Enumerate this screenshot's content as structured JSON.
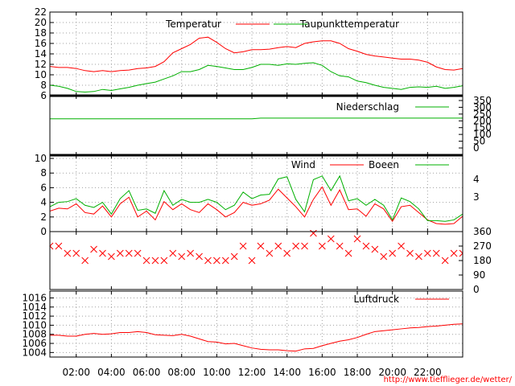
{
  "credit": "http://www.tiefflieger.de/wetter/",
  "colors": {
    "red": "#ff0000",
    "green": "#00b000",
    "grid": "#a0a0a0"
  },
  "x_ticks": [
    "02:00",
    "04:00",
    "06:00",
    "08:00",
    "10:00",
    "12:00",
    "14:00",
    "16:00",
    "18:00",
    "20:00",
    "22:00"
  ],
  "chart_data": [
    {
      "type": "line",
      "ylim": [
        6,
        22
      ],
      "yticks": [
        "22",
        "20",
        "18",
        "16",
        "14",
        "12",
        "10",
        "8",
        "6"
      ],
      "grid": true,
      "legend_position": "top-right",
      "series": [
        {
          "name": "Temperatur",
          "color": "#ff0000",
          "x": [
            0,
            0.5,
            1,
            1.5,
            2,
            2.5,
            3,
            3.5,
            4,
            4.5,
            5,
            5.5,
            6,
            6.5,
            7,
            7.5,
            8,
            8.5,
            9,
            9.5,
            10,
            10.5,
            11,
            11.5,
            12,
            12.5,
            13,
            13.5,
            14,
            14.5,
            15,
            15.5,
            16,
            16.5,
            17,
            17.5,
            18,
            18.5,
            19,
            19.5,
            20,
            20.5,
            21,
            21.5,
            22,
            22.5,
            23,
            23.5,
            24
          ],
          "values": [
            11.8,
            11.6,
            11.4,
            11.4,
            11.2,
            10.8,
            10.6,
            10.8,
            10.6,
            10.8,
            10.9,
            11.2,
            11.3,
            11.6,
            12.5,
            14.2,
            15.0,
            15.8,
            17.0,
            17.2,
            16.2,
            15.0,
            14.2,
            14.4,
            14.8,
            14.8,
            14.9,
            15.2,
            15.4,
            15.2,
            16.0,
            16.3,
            16.5,
            16.5,
            16.0,
            15.0,
            14.5,
            13.9,
            13.6,
            13.4,
            13.2,
            13.0,
            13.0,
            12.8,
            12.4,
            11.5,
            11.0,
            10.9,
            11.2
          ]
        },
        {
          "name": "Taupunkttemperatur",
          "color": "#00b000",
          "x": [
            0,
            0.5,
            1,
            1.5,
            2,
            2.5,
            3,
            3.5,
            4,
            4.5,
            5,
            5.5,
            6,
            6.5,
            7,
            7.5,
            8,
            8.5,
            9,
            9.5,
            10,
            10.5,
            11,
            11.5,
            12,
            12.5,
            13,
            13.5,
            14,
            14.5,
            15,
            15.5,
            16,
            16.5,
            17,
            17.5,
            18,
            18.5,
            19,
            19.5,
            20,
            20.5,
            21,
            21.5,
            22,
            22.5,
            23,
            23.5,
            24
          ],
          "values": [
            8.3,
            8.0,
            7.8,
            7.4,
            6.8,
            6.7,
            6.8,
            7.2,
            7.0,
            7.3,
            7.6,
            8.0,
            8.3,
            8.6,
            9.2,
            9.8,
            10.6,
            10.6,
            11.0,
            11.8,
            11.6,
            11.3,
            11.0,
            11.0,
            11.4,
            12.0,
            12.0,
            11.8,
            12.1,
            12.0,
            12.2,
            12.3,
            11.8,
            10.6,
            9.8,
            9.6,
            8.8,
            8.5,
            8.0,
            7.6,
            7.4,
            7.2,
            7.6,
            7.7,
            7.6,
            7.8,
            7.4,
            7.6,
            7.9
          ]
        }
      ]
    },
    {
      "type": "line",
      "ylim": [
        0,
        350
      ],
      "yticks": [
        "350",
        "300",
        "250",
        "200",
        "150",
        "100",
        "50",
        "0"
      ],
      "legend_position": "top-right",
      "series": [
        {
          "name": "Niederschlag",
          "color": "#00b000",
          "x": [
            0,
            12,
            12.5,
            24
          ],
          "values": [
            215,
            215,
            220,
            220
          ]
        }
      ]
    },
    {
      "type": "line",
      "ylim": [
        0,
        10
      ],
      "yticks": [
        "10",
        "8",
        "6",
        "4",
        "2",
        "0"
      ],
      "right_ticks": [
        "4",
        "3"
      ],
      "grid": true,
      "legend_position": "top-right",
      "series": [
        {
          "name": "Wind",
          "color": "#ff0000",
          "x": [
            0,
            0.5,
            1,
            1.5,
            2,
            2.5,
            3,
            3.5,
            4,
            4.5,
            5,
            5.5,
            6,
            6.5,
            7,
            7.5,
            8,
            8.5,
            9,
            9.5,
            10,
            10.5,
            11,
            11.5,
            12,
            12.5,
            13,
            13.5,
            14,
            14.5,
            15,
            15.5,
            16,
            16.5,
            17,
            17.5,
            18,
            18.5,
            19,
            19.5,
            20,
            20.5,
            21,
            21.5,
            22,
            22.5,
            23,
            23.5,
            24
          ],
          "values": [
            4.0,
            2.8,
            3.2,
            3.1,
            3.8,
            2.6,
            2.4,
            3.5,
            2.0,
            3.8,
            4.7,
            2.0,
            2.8,
            1.6,
            4.1,
            3.0,
            3.8,
            3.0,
            2.6,
            3.8,
            3.0,
            2.0,
            2.6,
            4.0,
            3.6,
            3.8,
            4.3,
            5.8,
            4.6,
            3.4,
            2.0,
            4.4,
            6.1,
            3.6,
            5.7,
            3.0,
            3.1,
            2.1,
            3.8,
            3.1,
            1.4,
            3.4,
            3.6,
            2.6,
            1.6,
            1.1,
            1.0,
            1.1,
            2.1
          ]
        },
        {
          "name": "Boeen",
          "color": "#00b000",
          "x": [
            0,
            0.5,
            1,
            1.5,
            2,
            2.5,
            3,
            3.5,
            4,
            4.5,
            5,
            5.5,
            6,
            6.5,
            7,
            7.5,
            8,
            8.5,
            9,
            9.5,
            10,
            10.5,
            11,
            11.5,
            12,
            12.5,
            13,
            13.5,
            14,
            14.5,
            15,
            15.5,
            16,
            16.5,
            17,
            17.5,
            18,
            18.5,
            19,
            19.5,
            20,
            20.5,
            21,
            21.5,
            22,
            22.5,
            23,
            23.5,
            24
          ],
          "values": [
            5.7,
            3.4,
            4.0,
            4.1,
            4.5,
            3.6,
            3.3,
            4.0,
            2.4,
            4.5,
            5.6,
            2.9,
            3.1,
            2.5,
            5.6,
            3.6,
            4.4,
            4.0,
            4.0,
            4.4,
            4.0,
            3.0,
            3.6,
            5.4,
            4.5,
            5.0,
            5.1,
            7.2,
            7.5,
            4.4,
            2.7,
            7.1,
            7.6,
            5.6,
            7.6,
            4.2,
            4.5,
            3.6,
            4.4,
            3.6,
            1.6,
            4.6,
            4.1,
            3.1,
            1.5,
            1.5,
            1.4,
            1.6,
            2.4
          ]
        }
      ]
    },
    {
      "type": "scatter",
      "ylim": [
        0,
        360
      ],
      "yticks": [
        "360",
        "270",
        "180",
        "90",
        "0"
      ],
      "marker": "x",
      "series": [
        {
          "color": "#ff0000",
          "x": [
            0,
            0.5,
            1,
            1.5,
            2,
            2.5,
            3,
            3.5,
            4,
            4.5,
            5,
            5.5,
            6,
            6.5,
            7,
            7.5,
            8,
            8.5,
            9,
            9.5,
            10,
            10.5,
            11,
            11.5,
            12,
            12.5,
            13,
            13.5,
            14,
            14.5,
            15,
            15.5,
            16,
            16.5,
            17,
            17.5,
            18,
            18.5,
            19,
            19.5,
            20,
            20.5,
            21,
            21.5,
            22,
            22.5,
            23,
            23.5,
            24
          ],
          "values": [
            225,
            270,
            270,
            225,
            225,
            180,
            250,
            225,
            205,
            225,
            225,
            225,
            180,
            180,
            180,
            225,
            205,
            225,
            205,
            180,
            180,
            180,
            205,
            270,
            180,
            270,
            225,
            270,
            225,
            270,
            270,
            350,
            270,
            315,
            270,
            225,
            315,
            270,
            250,
            205,
            225,
            270,
            225,
            205,
            225,
            225,
            180,
            225,
            225
          ]
        }
      ]
    },
    {
      "type": "line",
      "ylim": [
        1003,
        1017.5
      ],
      "yticks": [
        "1016",
        "1014",
        "1012",
        "1010",
        "1008",
        "1006",
        "1004"
      ],
      "grid": true,
      "legend_position": "top-right",
      "series": [
        {
          "name": "Luftdruck",
          "color": "#ff0000",
          "x": [
            0,
            0.5,
            1,
            1.5,
            2,
            2.5,
            3,
            3.5,
            4,
            4.5,
            5,
            5.5,
            6,
            6.5,
            7,
            7.5,
            8,
            8.5,
            9,
            9.5,
            10,
            10.5,
            11,
            11.5,
            12,
            12.5,
            13,
            13.5,
            14,
            14.5,
            15,
            15.5,
            16,
            16.5,
            17,
            17.5,
            18,
            18.5,
            19,
            19.5,
            20,
            20.5,
            21,
            21.5,
            22,
            22.5,
            23,
            23.5,
            24
          ],
          "values": [
            1007.8,
            1007.8,
            1007.8,
            1007.6,
            1007.6,
            1008.0,
            1008.2,
            1008.0,
            1008.1,
            1008.4,
            1008.4,
            1008.6,
            1008.4,
            1007.9,
            1007.8,
            1007.7,
            1008.0,
            1007.6,
            1007.0,
            1006.4,
            1006.3,
            1005.9,
            1006.0,
            1005.5,
            1005.0,
            1004.7,
            1004.6,
            1004.6,
            1004.4,
            1004.3,
            1004.8,
            1004.9,
            1005.5,
            1006.0,
            1006.5,
            1006.8,
            1007.3,
            1008.0,
            1008.6,
            1008.8,
            1009.0,
            1009.2,
            1009.4,
            1009.5,
            1009.7,
            1009.8,
            1010.0,
            1010.2,
            1010.3
          ]
        }
      ]
    }
  ]
}
